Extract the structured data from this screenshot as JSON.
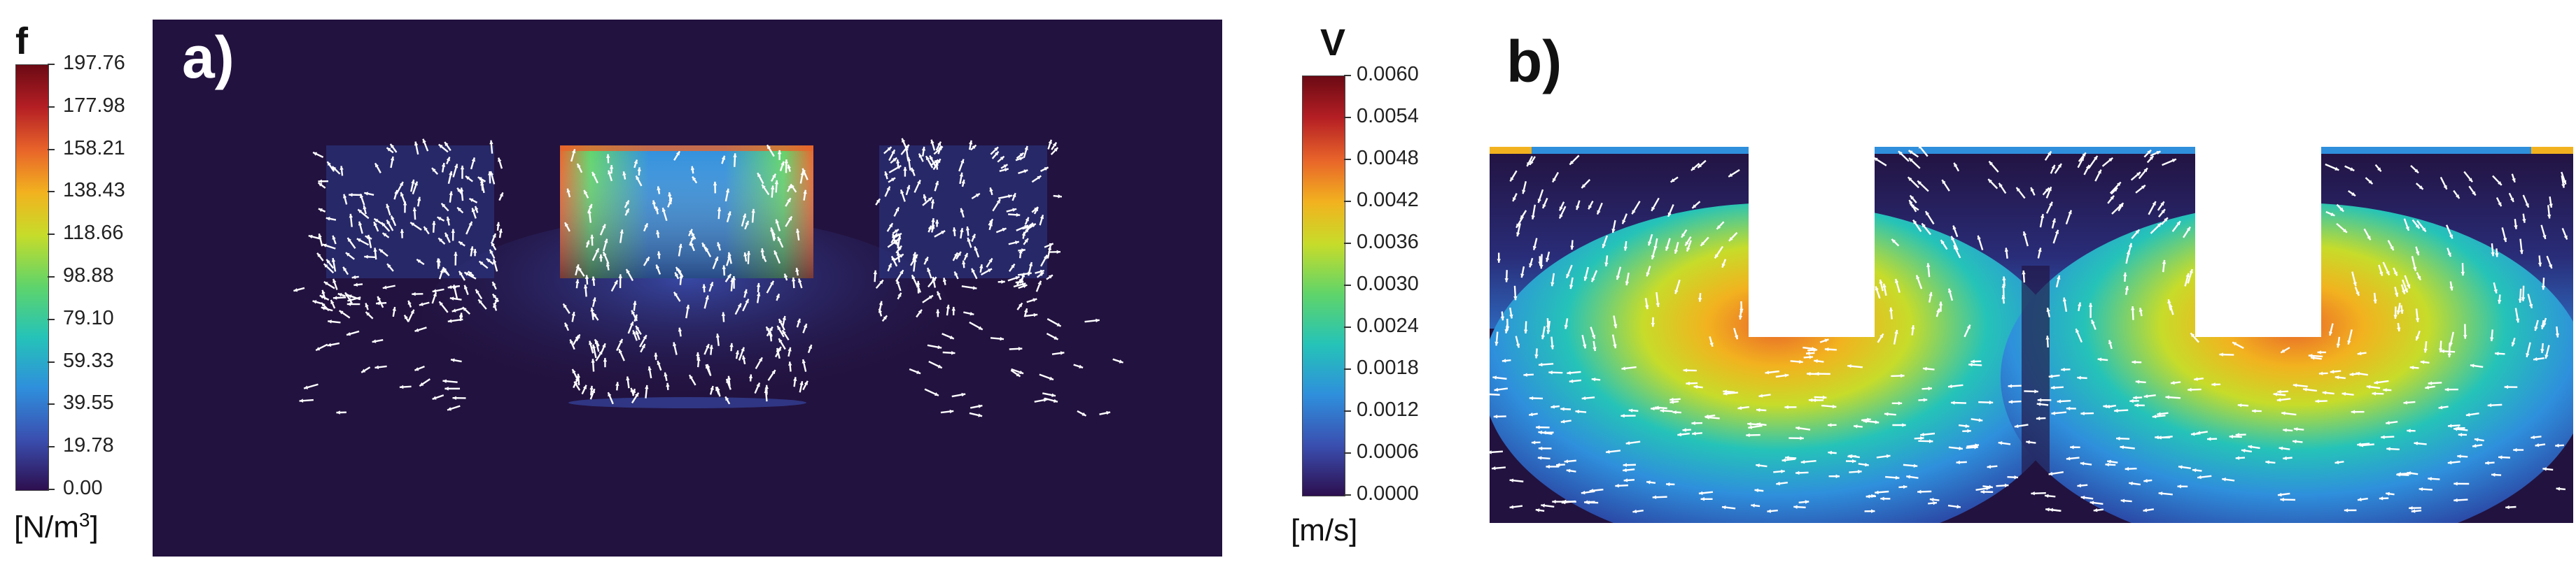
{
  "colorbar_f": {
    "symbol": "f",
    "ticks": [
      "197.76",
      "177.98",
      "158.21",
      "138.43",
      "118.66",
      "98.88",
      "79.10",
      "59.33",
      "39.55",
      "19.78",
      "0.00"
    ],
    "unit_base": "[N/m",
    "unit_sup": "3",
    "unit_close": "]"
  },
  "colorbar_v": {
    "symbol": "V",
    "ticks": [
      "0.0060",
      "0.0054",
      "0.0048",
      "0.0042",
      "0.0036",
      "0.0030",
      "0.0024",
      "0.0018",
      "0.0012",
      "0.0006",
      "0.0000"
    ],
    "unit": "[m/s]"
  },
  "panel_a": {
    "label": "a)"
  },
  "panel_b": {
    "label": "b)"
  },
  "colors": {
    "background_dark": "#22123f",
    "arrow": "#ffffff",
    "cmap": [
      "#2d0f4f",
      "#3a4fb0",
      "#2f8fdc",
      "#25c3b8",
      "#5fd46a",
      "#c7dc2a",
      "#f2b21f",
      "#e8642a",
      "#b51f24",
      "#6b0a14"
    ]
  }
}
